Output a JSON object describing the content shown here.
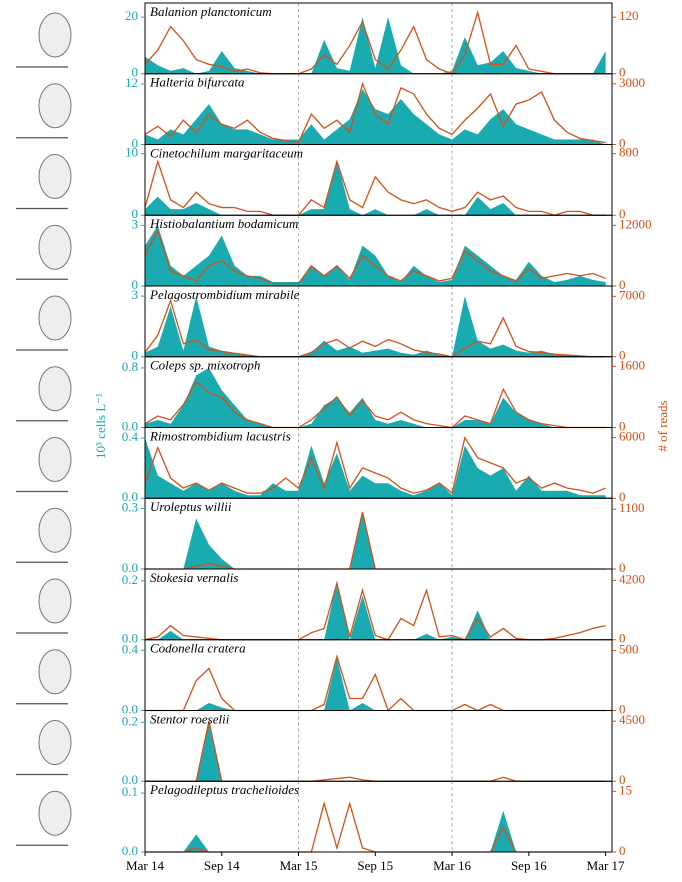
{
  "chart_data": {
    "type": "area-line",
    "cells_color": "#1aabb0",
    "reads_color": "#d2521a",
    "ylabel": "10³ cells L⁻¹",
    "y2label": "# of reads",
    "x": [
      0,
      1,
      2,
      3,
      4,
      5,
      6,
      7,
      8,
      9,
      10,
      11,
      12,
      13,
      14,
      15,
      16,
      17,
      18,
      19,
      20,
      21,
      22,
      23,
      24,
      25,
      26,
      27,
      28,
      29,
      30,
      31,
      32,
      33,
      34,
      35,
      36
    ],
    "xlim": [
      0,
      36.5
    ],
    "xticks": [
      {
        "value": 0,
        "label": "Mar 14"
      },
      {
        "value": 6,
        "label": "Sep 14"
      },
      {
        "value": 12,
        "label": "Mar 15"
      },
      {
        "value": 18,
        "label": "Sep 15"
      },
      {
        "value": 24,
        "label": "Mar 16"
      },
      {
        "value": 30,
        "label": "Sep 16"
      },
      {
        "value": 36,
        "label": "Mar 17"
      }
    ],
    "dashed_lines": [
      12,
      24
    ],
    "panels": [
      {
        "title": "Balanion planctonicum",
        "ylim": [
          0,
          25
        ],
        "yticks": [
          0,
          20
        ],
        "y2lim": [
          0,
          150
        ],
        "y2ticks": [
          0,
          120
        ],
        "cells": [
          6,
          3,
          1,
          2,
          0,
          1,
          8,
          2,
          1,
          0,
          0,
          0,
          0,
          0,
          12,
          2,
          1,
          20,
          2,
          20,
          3,
          0,
          0,
          0,
          1,
          13,
          3,
          4,
          8,
          2,
          1,
          0,
          0,
          0,
          0,
          0,
          8
        ],
        "reads": [
          20,
          50,
          100,
          70,
          30,
          20,
          15,
          5,
          10,
          2,
          0,
          0,
          0,
          10,
          40,
          20,
          60,
          110,
          30,
          10,
          50,
          100,
          30,
          10,
          0,
          40,
          130,
          20,
          20,
          60,
          10,
          5,
          0,
          0,
          0,
          0,
          0
        ]
      },
      {
        "title": "Halteria bifurcata",
        "ylim": [
          0,
          14
        ],
        "yticks": [
          0,
          12
        ],
        "y2lim": [
          0,
          3500
        ],
        "y2ticks": [
          0,
          3000
        ],
        "cells": [
          2,
          1,
          3,
          2,
          5,
          8,
          4,
          3,
          3,
          2,
          1,
          1,
          1,
          4,
          1,
          3,
          5,
          11,
          7,
          6,
          9,
          6,
          4,
          2,
          1,
          3,
          2,
          5,
          7,
          4,
          3,
          2,
          1,
          1,
          1,
          1,
          0
        ],
        "reads": [
          500,
          900,
          400,
          1200,
          600,
          1500,
          1000,
          800,
          1200,
          600,
          300,
          200,
          100,
          1500,
          800,
          1200,
          600,
          3000,
          1500,
          1000,
          2800,
          2500,
          1500,
          800,
          500,
          1200,
          1800,
          2500,
          900,
          2000,
          2200,
          2600,
          1200,
          600,
          300,
          200,
          100
        ]
      },
      {
        "title": "Cinetochilum margaritaceum",
        "ylim": [
          0,
          11.5
        ],
        "yticks": [
          0,
          10
        ],
        "y2lim": [
          0,
          920
        ],
        "y2ticks": [
          0,
          800
        ],
        "cells": [
          1,
          3,
          1,
          1,
          2,
          1,
          0,
          0,
          0,
          0,
          0,
          0,
          0,
          1,
          1,
          9,
          1,
          0,
          1,
          0,
          0,
          0,
          1,
          0,
          0,
          0,
          3,
          1,
          2,
          0,
          0,
          0,
          0,
          0,
          0,
          0,
          0
        ],
        "reads": [
          100,
          700,
          200,
          100,
          300,
          150,
          100,
          100,
          50,
          50,
          0,
          0,
          0,
          200,
          100,
          700,
          200,
          100,
          500,
          300,
          200,
          150,
          200,
          100,
          50,
          100,
          300,
          200,
          250,
          100,
          50,
          50,
          0,
          50,
          50,
          0,
          0
        ]
      },
      {
        "title": "Histiobalantium bodamicum",
        "ylim": [
          0,
          3.5
        ],
        "yticks": [
          0,
          3
        ],
        "y2lim": [
          0,
          14000
        ],
        "y2ticks": [
          0,
          12000
        ],
        "cells": [
          2,
          3,
          1,
          0.5,
          1,
          1.5,
          2.5,
          1,
          0.5,
          0.5,
          0.2,
          0.2,
          0.2,
          1,
          0.5,
          1,
          0.3,
          2,
          1.5,
          0.5,
          0.2,
          1,
          0.5,
          0.2,
          0.3,
          2,
          1.5,
          1,
          0.5,
          0.3,
          1.2,
          0.5,
          0.2,
          0.3,
          0.5,
          0.3,
          0.2
        ],
        "reads": [
          6000,
          11000,
          3000,
          2000,
          1000,
          4000,
          5000,
          3000,
          2000,
          1500,
          500,
          500,
          500,
          4000,
          2000,
          4000,
          1500,
          6000,
          4000,
          2000,
          1000,
          3000,
          2000,
          1000,
          1500,
          7000,
          5000,
          3000,
          2000,
          1000,
          3500,
          1500,
          2000,
          2500,
          2000,
          2500,
          1500
        ]
      },
      {
        "title": "Pelagostrombidium mirabile",
        "ylim": [
          0,
          3.5
        ],
        "yticks": [
          0,
          3
        ],
        "y2lim": [
          0,
          8200
        ],
        "y2ticks": [
          0,
          7000
        ],
        "cells": [
          0.2,
          0.5,
          2.5,
          0.3,
          3,
          0.5,
          0.3,
          0.2,
          0.1,
          0,
          0,
          0,
          0,
          0.2,
          0.8,
          0.3,
          0.5,
          0.2,
          0.3,
          0.4,
          0.2,
          0.1,
          0.3,
          0.1,
          0,
          3,
          0.8,
          0.4,
          0.6,
          0.3,
          0.2,
          0.3,
          0.1,
          0.1,
          0,
          0,
          0
        ],
        "reads": [
          500,
          2500,
          6500,
          1500,
          2000,
          800,
          600,
          400,
          200,
          0,
          0,
          0,
          0,
          500,
          1500,
          2000,
          1000,
          1800,
          1200,
          2000,
          1500,
          800,
          500,
          300,
          0,
          1000,
          1800,
          1500,
          4500,
          1200,
          600,
          500,
          300,
          200,
          100,
          0,
          0
        ]
      },
      {
        "title": "Coleps sp. mixotroph",
        "ylim": [
          0,
          0.95
        ],
        "yticks": [
          {
            "value": 0,
            "label": "0.0"
          },
          0.8
        ],
        "y2lim": [
          0,
          1850
        ],
        "y2ticks": [
          0,
          1600
        ],
        "cells": [
          0.05,
          0.1,
          0.05,
          0.3,
          0.7,
          0.8,
          0.5,
          0.3,
          0.1,
          0.05,
          0,
          0,
          0,
          0.05,
          0.3,
          0.4,
          0.2,
          0.4,
          0.1,
          0.05,
          0.1,
          0.05,
          0,
          0,
          0,
          0.1,
          0.1,
          0.05,
          0.4,
          0.2,
          0.1,
          0.05,
          0,
          0,
          0,
          0,
          0
        ],
        "reads": [
          100,
          300,
          200,
          600,
          1200,
          900,
          800,
          400,
          200,
          100,
          0,
          0,
          0,
          200,
          500,
          800,
          300,
          700,
          300,
          200,
          400,
          200,
          100,
          50,
          0,
          300,
          200,
          100,
          1000,
          400,
          200,
          100,
          50,
          0,
          0,
          0,
          0
        ]
      },
      {
        "title": "Rimostrombidium lacustris",
        "ylim": [
          0,
          0.47
        ],
        "yticks": [
          {
            "value": 0,
            "label": "0.0"
          },
          0.4
        ],
        "y2lim": [
          0,
          7000
        ],
        "y2ticks": [
          0,
          6000
        ],
        "cells": [
          0.4,
          0.15,
          0.1,
          0.05,
          0.1,
          0.05,
          0.1,
          0.05,
          0.02,
          0.02,
          0.1,
          0.05,
          0.05,
          0.35,
          0.1,
          0.3,
          0.05,
          0.15,
          0.1,
          0.1,
          0.05,
          0.02,
          0.05,
          0.1,
          0.02,
          0.35,
          0.2,
          0.15,
          0.2,
          0.05,
          0.15,
          0.05,
          0.05,
          0.05,
          0.02,
          0.02,
          0.02
        ],
        "reads": [
          1500,
          5000,
          2000,
          1000,
          1500,
          800,
          1500,
          1000,
          500,
          500,
          1000,
          2000,
          1000,
          4000,
          1000,
          5500,
          1000,
          3000,
          2500,
          2000,
          1000,
          500,
          800,
          1500,
          500,
          6000,
          4000,
          3500,
          3000,
          1500,
          2000,
          1000,
          1500,
          1000,
          800,
          500,
          1000
        ]
      },
      {
        "title": "Uroleptus willii",
        "ylim": [
          0,
          0.35
        ],
        "yticks": [
          {
            "value": 0,
            "label": "0.0"
          },
          0.3
        ],
        "y2lim": [
          0,
          1300
        ],
        "y2ticks": [
          0,
          1100
        ],
        "cells": [
          0,
          0,
          0,
          0,
          0.25,
          0.12,
          0.05,
          0,
          0,
          0,
          0,
          0,
          0,
          0,
          0,
          0,
          0,
          0.28,
          0,
          0,
          0,
          0,
          0,
          0,
          0,
          0,
          0,
          0,
          0,
          0,
          0,
          0,
          0,
          0,
          0,
          0,
          0
        ],
        "reads": [
          0,
          0,
          0,
          0,
          50,
          100,
          50,
          0,
          0,
          0,
          0,
          0,
          0,
          0,
          0,
          0,
          0,
          1050,
          0,
          0,
          0,
          0,
          0,
          0,
          0,
          0,
          0,
          0,
          0,
          0,
          0,
          0,
          0,
          0,
          0,
          0,
          0
        ]
      },
      {
        "title": "Stokesia vernalis",
        "ylim": [
          0,
          0.24
        ],
        "yticks": [
          {
            "value": 0,
            "label": "0.0"
          },
          0.2
        ],
        "y2lim": [
          0,
          5000
        ],
        "y2ticks": [
          0,
          4200
        ],
        "cells": [
          0,
          0,
          0.03,
          0,
          0,
          0,
          0,
          0,
          0,
          0,
          0,
          0,
          0,
          0,
          0,
          0.2,
          0,
          0.15,
          0,
          0,
          0,
          0,
          0.02,
          0,
          0.01,
          0,
          0.1,
          0,
          0,
          0,
          0,
          0,
          0,
          0,
          0,
          0,
          0
        ],
        "reads": [
          0,
          200,
          1000,
          300,
          200,
          100,
          0,
          0,
          0,
          0,
          0,
          0,
          0,
          500,
          800,
          4000,
          200,
          3500,
          300,
          0,
          1500,
          1000,
          3500,
          200,
          300,
          0,
          1500,
          200,
          800,
          100,
          0,
          0,
          100,
          300,
          500,
          800,
          1000
        ]
      },
      {
        "title": "Codonella cratera",
        "ylim": [
          0,
          0.47
        ],
        "yticks": [
          {
            "value": 0,
            "label": "0.0"
          },
          0.4
        ],
        "y2lim": [
          0,
          590
        ],
        "y2ticks": [
          0,
          500
        ],
        "cells": [
          0,
          0,
          0,
          0,
          0,
          0.05,
          0.02,
          0,
          0,
          0,
          0,
          0,
          0,
          0,
          0,
          0.35,
          0,
          0.05,
          0,
          0,
          0,
          0,
          0,
          0,
          0,
          0,
          0,
          0,
          0,
          0,
          0,
          0,
          0,
          0,
          0,
          0,
          0
        ],
        "reads": [
          0,
          0,
          0,
          0,
          250,
          350,
          100,
          0,
          0,
          0,
          0,
          0,
          0,
          0,
          50,
          450,
          100,
          100,
          300,
          0,
          100,
          0,
          0,
          0,
          0,
          50,
          0,
          50,
          0,
          0,
          0,
          0,
          0,
          0,
          0,
          0,
          0
        ]
      },
      {
        "title": "Stentor roeselii",
        "ylim": [
          0,
          0.24
        ],
        "yticks": [
          {
            "value": 0,
            "label": "0.0"
          },
          0.2
        ],
        "y2lim": [
          0,
          5300
        ],
        "y2ticks": [
          0,
          4500
        ],
        "cells": [
          0,
          0,
          0,
          0,
          0,
          0.2,
          0,
          0,
          0,
          0,
          0,
          0,
          0,
          0,
          0,
          0,
          0,
          0,
          0,
          0,
          0,
          0,
          0,
          0,
          0,
          0,
          0,
          0,
          0,
          0,
          0,
          0,
          0,
          0,
          0,
          0,
          0
        ],
        "reads": [
          0,
          0,
          0,
          0,
          0,
          4500,
          0,
          0,
          0,
          0,
          0,
          0,
          0,
          0,
          100,
          200,
          300,
          100,
          0,
          0,
          0,
          0,
          0,
          0,
          0,
          0,
          0,
          0,
          300,
          0,
          0,
          0,
          0,
          0,
          0,
          0,
          0
        ]
      },
      {
        "title": "Pelagodileptus trachelioides",
        "ylim": [
          0,
          0.12
        ],
        "yticks": [
          {
            "value": 0,
            "label": "0.0"
          },
          0.1
        ],
        "y2lim": [
          0,
          17.5
        ],
        "y2ticks": [
          0,
          15
        ],
        "cells": [
          0,
          0,
          0,
          0,
          0.03,
          0,
          0,
          0,
          0,
          0,
          0,
          0,
          0,
          0,
          0,
          0,
          0,
          0,
          0,
          0,
          0,
          0,
          0,
          0,
          0,
          0,
          0,
          0,
          0.07,
          0,
          0,
          0,
          0,
          0,
          0,
          0,
          0
        ],
        "reads": [
          0,
          0,
          0,
          0,
          1,
          0,
          0,
          0,
          0,
          0,
          0,
          0,
          0,
          0,
          12,
          1,
          12,
          1,
          0,
          0,
          0,
          0,
          0,
          0,
          0,
          0,
          0,
          0,
          6,
          0,
          0,
          0,
          0,
          0,
          0,
          0,
          0
        ]
      }
    ]
  }
}
